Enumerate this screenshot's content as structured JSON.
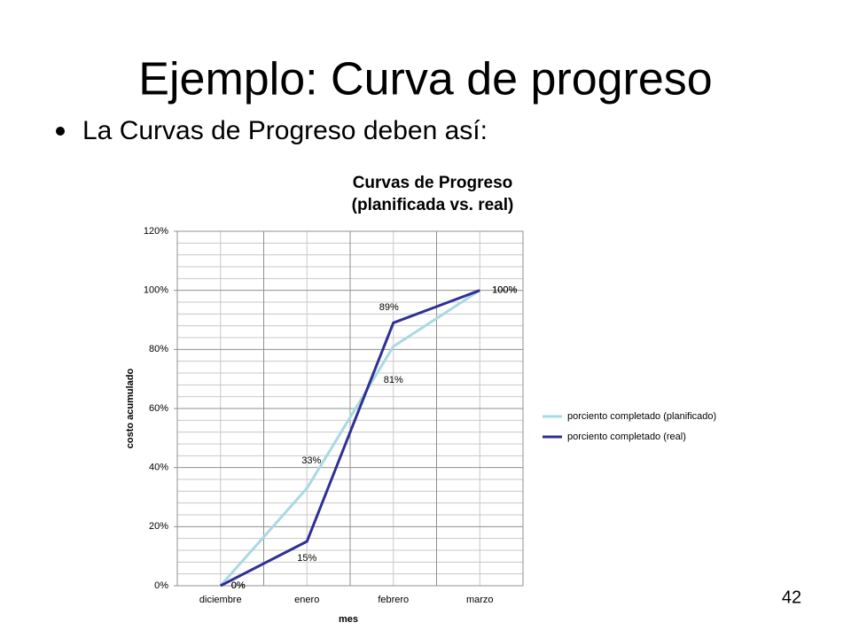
{
  "slide": {
    "title": "Ejemplo: Curva de progreso",
    "bullet": "La Curvas de Progreso deben así:",
    "page_number": "42"
  },
  "chart_data": {
    "type": "line",
    "title": [
      "Curvas de Progreso",
      "(planificada vs. real)"
    ],
    "x_label": "mes",
    "y_label": "costo acumulado",
    "categories": [
      "diciembre",
      "enero",
      "febrero",
      "marzo"
    ],
    "series": [
      {
        "name": "porciento completado (planificado)",
        "color": "#a9d9e2",
        "values": [
          0,
          33,
          81,
          100
        ],
        "value_labels": [
          "0%",
          "33%",
          "81%",
          "100%"
        ]
      },
      {
        "name": "porciento completado (real)",
        "color": "#2e3192",
        "values": [
          0,
          15,
          89,
          100
        ],
        "value_labels": [
          "0%",
          "15%",
          "89%",
          "100%"
        ]
      }
    ],
    "ylim": [
      0,
      120
    ],
    "yticks": [
      {
        "value": 0,
        "label": "0%"
      },
      {
        "value": 20,
        "label": "20%"
      },
      {
        "value": 40,
        "label": "40%"
      },
      {
        "value": 60,
        "label": "60%"
      },
      {
        "value": 80,
        "label": "80%"
      },
      {
        "value": 100,
        "label": "100%"
      },
      {
        "value": 120,
        "label": "120%"
      }
    ],
    "grid": true,
    "legend": "right"
  }
}
